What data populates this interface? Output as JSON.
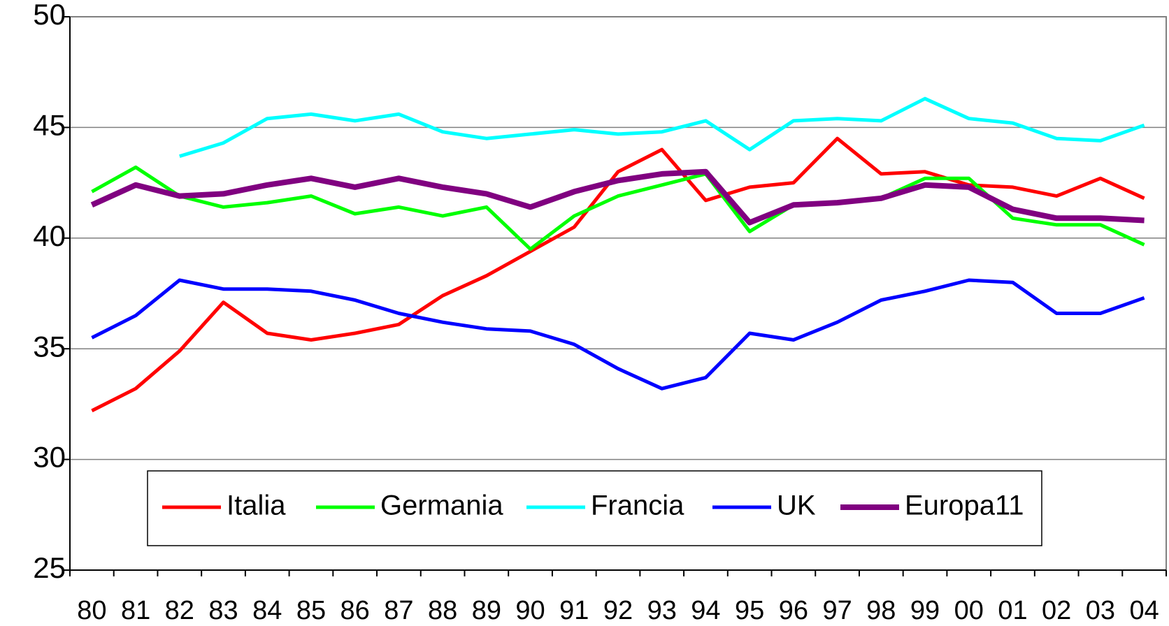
{
  "chart_data": {
    "type": "line",
    "categories": [
      "80",
      "81",
      "82",
      "83",
      "84",
      "85",
      "86",
      "87",
      "88",
      "89",
      "90",
      "91",
      "92",
      "93",
      "94",
      "95",
      "96",
      "97",
      "98",
      "99",
      "00",
      "01",
      "02",
      "03",
      "04"
    ],
    "series": [
      {
        "name": "Italia",
        "color": "#ff0000",
        "line_width": 5,
        "values": [
          32.2,
          33.2,
          34.9,
          37.1,
          35.7,
          35.4,
          35.7,
          36.1,
          37.4,
          38.3,
          39.4,
          40.5,
          43.0,
          44.0,
          41.7,
          42.3,
          42.5,
          44.5,
          42.9,
          43.0,
          42.4,
          42.3,
          41.9,
          42.7,
          41.8
        ]
      },
      {
        "name": "Germania",
        "color": "#00ff00",
        "line_width": 5,
        "values": [
          42.1,
          43.2,
          41.9,
          41.4,
          41.6,
          41.9,
          41.1,
          41.4,
          41.0,
          41.4,
          39.5,
          41.0,
          41.9,
          42.4,
          42.9,
          40.3,
          41.5,
          41.6,
          41.8,
          42.7,
          42.7,
          40.9,
          40.6,
          40.6,
          39.7
        ]
      },
      {
        "name": "Francia",
        "color": "#00ffff",
        "line_width": 5,
        "values": [
          null,
          null,
          43.7,
          44.3,
          45.4,
          45.6,
          45.3,
          45.6,
          44.8,
          44.5,
          44.7,
          44.9,
          44.7,
          44.8,
          45.3,
          44.0,
          45.3,
          45.4,
          45.3,
          46.3,
          45.4,
          45.2,
          44.5,
          44.4,
          45.1
        ]
      },
      {
        "name": "UK",
        "color": "#0000ff",
        "line_width": 5,
        "values": [
          35.5,
          36.5,
          38.1,
          37.7,
          37.7,
          37.6,
          37.2,
          36.6,
          36.2,
          35.9,
          35.8,
          35.2,
          34.1,
          33.2,
          33.7,
          35.7,
          35.4,
          36.2,
          37.2,
          37.6,
          38.1,
          38.0,
          36.6,
          36.6,
          37.3
        ]
      },
      {
        "name": "Europa11",
        "color": "#800080",
        "line_width": 8,
        "values": [
          41.5,
          42.4,
          41.9,
          42.0,
          42.4,
          42.7,
          42.3,
          42.7,
          42.3,
          42.0,
          41.4,
          42.1,
          42.6,
          42.9,
          43.0,
          40.7,
          41.5,
          41.6,
          41.8,
          42.4,
          42.3,
          41.3,
          40.9,
          40.9,
          40.8
        ]
      }
    ],
    "ylim": [
      25,
      50
    ],
    "yticks": [
      25,
      30,
      35,
      40,
      45,
      50
    ],
    "grid": true,
    "legend": "bottom"
  }
}
